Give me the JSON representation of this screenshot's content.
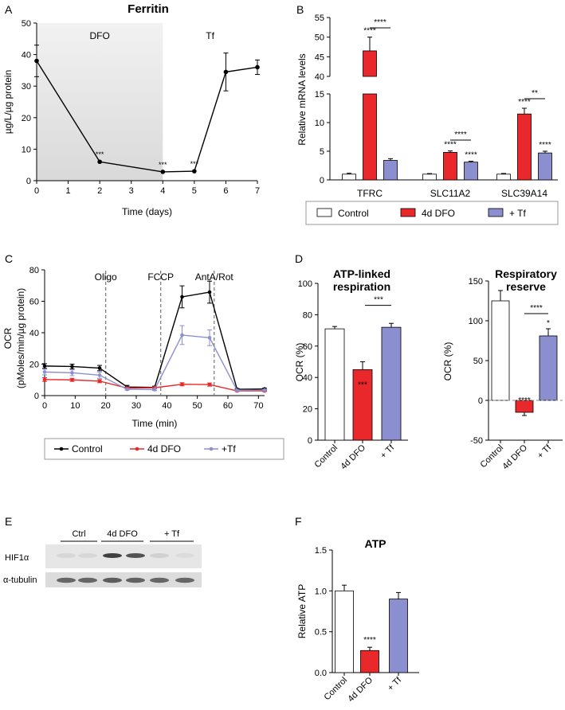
{
  "panel_letters": [
    "A",
    "B",
    "C",
    "D",
    "E",
    "F"
  ],
  "colors": {
    "control": "#ffffff",
    "dfo": "#e8282a",
    "tf": "#8b8fcf",
    "ink": "#000000",
    "shade": "#e4e4e4"
  },
  "chart_data": [
    {
      "id": "A",
      "type": "line",
      "title": "Ferritin",
      "xlabel": "Time (days)",
      "ylabel": "µg/L/µg protein",
      "xlim": [
        0,
        7
      ],
      "ylim": [
        0,
        50
      ],
      "xticks": [
        "0",
        "1",
        "2",
        "3",
        "4",
        "5",
        "6",
        "7"
      ],
      "yticks": [
        "0",
        "10",
        "20",
        "30",
        "40",
        "50"
      ],
      "regions": [
        {
          "label": "DFO",
          "x0": 0,
          "x1": 4
        },
        {
          "label": "Tf",
          "x0": 4,
          "x1": 7
        }
      ],
      "series": [
        {
          "name": "Ferritin",
          "x": [
            0,
            2,
            4,
            5,
            6,
            7
          ],
          "y": [
            38,
            6,
            2.8,
            3,
            34.5,
            36
          ],
          "err": [
            5,
            0.3,
            0.3,
            0.3,
            6,
            2.3
          ],
          "labels": [
            "",
            "***",
            "***",
            "***",
            "",
            ""
          ]
        }
      ]
    },
    {
      "id": "B",
      "type": "bar",
      "ylabel": "Relative mRNA levels",
      "categories": [
        "TFRC",
        "SLC11A2",
        "SLC39A14"
      ],
      "ylim_lower": [
        0,
        15
      ],
      "ylim_upper": [
        40,
        55
      ],
      "yticks_lower": [
        "0",
        "5",
        "10",
        "15"
      ],
      "yticks_upper": [
        "40",
        "45",
        "50",
        "55"
      ],
      "series": [
        {
          "name": "Control",
          "values": [
            1,
            1,
            1
          ],
          "err": [
            0.15,
            0.1,
            0.12
          ]
        },
        {
          "name": "4d DFO",
          "values": [
            46.5,
            4.8,
            11.5
          ],
          "err": [
            3.5,
            0.25,
            1
          ]
        },
        {
          "name": "+ Tf",
          "values": [
            3.4,
            3.1,
            4.7
          ],
          "err": [
            0.3,
            0.15,
            0.3
          ]
        }
      ],
      "star_labels": [
        "****",
        "****",
        "****",
        "****",
        "****",
        "****"
      ],
      "bracket_labels": [
        "****",
        "****",
        "**"
      ],
      "legend": [
        "Control",
        "4d DFO",
        "+ Tf"
      ]
    },
    {
      "id": "C",
      "type": "line",
      "xlabel": "Time (min)",
      "ylabel": "OCR",
      "ylabel2": "(pMoles/min/µg protein)",
      "xlim": [
        0,
        72
      ],
      "ylim": [
        0,
        80
      ],
      "xticks": [
        "0",
        "10",
        "20",
        "30",
        "40",
        "50",
        "60",
        "70"
      ],
      "yticks": [
        "0",
        "20",
        "40",
        "60",
        "80"
      ],
      "markers": [
        {
          "label": "Oligo",
          "x": 20
        },
        {
          "label": "FCCP",
          "x": 38
        },
        {
          "label": "AntA/Rot",
          "x": 55.5
        }
      ],
      "x": [
        0,
        9,
        18,
        27,
        36,
        45,
        54,
        63,
        72
      ],
      "series": [
        {
          "name": "Control",
          "y": [
            18.8,
            18.5,
            17.5,
            5.5,
            5.2,
            62.8,
            65.8,
            4,
            4.2
          ],
          "err": [
            1.5,
            1.5,
            1.7,
            1,
            0.8,
            7,
            7,
            0.5,
            0.5
          ]
        },
        {
          "name": "4d DFO",
          "y": [
            10.2,
            10,
            9.2,
            4.8,
            5,
            7.2,
            7,
            3,
            3
          ],
          "err": [
            1.2,
            1,
            1,
            0.5,
            0.5,
            1,
            1,
            0.4,
            0.4
          ]
        },
        {
          "name": "+Tf",
          "y": [
            15,
            14.5,
            13,
            4,
            3.8,
            38.5,
            36.8,
            3.3,
            3.5
          ],
          "err": [
            1.8,
            1.8,
            2,
            0.6,
            0.6,
            6,
            5,
            0.4,
            0.4
          ]
        }
      ],
      "legend": [
        "Control",
        "4d DFO",
        "+Tf"
      ]
    },
    {
      "id": "D1",
      "type": "bar",
      "title": "ATP-linked respiration",
      "title_lines": [
        "ATP-linked",
        "respiration"
      ],
      "ylabel": "OCR (%)",
      "ylim": [
        0,
        100
      ],
      "yticks": [
        "0",
        "20",
        "40",
        "60",
        "80",
        "100"
      ],
      "categories": [
        "Control",
        "4d DFO",
        "+ Tf"
      ],
      "values": [
        71,
        45,
        72
      ],
      "err": [
        1.5,
        5,
        2.5
      ],
      "star_labels": [
        "",
        "***",
        ""
      ],
      "bracket_labels": [
        "***"
      ]
    },
    {
      "id": "D2",
      "type": "bar",
      "title": "Respiratory reserve",
      "title_lines": [
        "Respiratory",
        "reserve"
      ],
      "ylabel": "OCR (%)",
      "ylim": [
        -50,
        150
      ],
      "yticks": [
        "-50",
        "0",
        "50",
        "100",
        "150"
      ],
      "categories": [
        "Control",
        "4d DFO",
        "+ Tf"
      ],
      "values": [
        125,
        -15,
        81
      ],
      "err": [
        13,
        4,
        9
      ],
      "star_labels": [
        "",
        "****",
        "*"
      ],
      "bracket_labels": [
        "****"
      ]
    },
    {
      "id": "F",
      "type": "bar",
      "title": "ATP",
      "ylabel": "Relative ATP",
      "ylim": [
        0,
        1.5
      ],
      "yticks": [
        "0.0",
        "0.5",
        "1.0",
        "1.5"
      ],
      "categories": [
        "Control",
        "4d DFO",
        "+ Tf"
      ],
      "values": [
        1.0,
        0.27,
        0.9
      ],
      "err": [
        0.07,
        0.04,
        0.08
      ],
      "star_labels": [
        "",
        "****",
        ""
      ]
    }
  ],
  "blot": {
    "groups": [
      "Ctrl",
      "4d DFO",
      "+ Tf"
    ],
    "rows": [
      "HIF1α",
      "α-tubulin"
    ],
    "hif1a_intensity": [
      0.08,
      0.08,
      0.85,
      0.75,
      0.1,
      0.05
    ],
    "tubulin_intensity": [
      0.7,
      0.7,
      0.75,
      0.72,
      0.7,
      0.7
    ]
  }
}
